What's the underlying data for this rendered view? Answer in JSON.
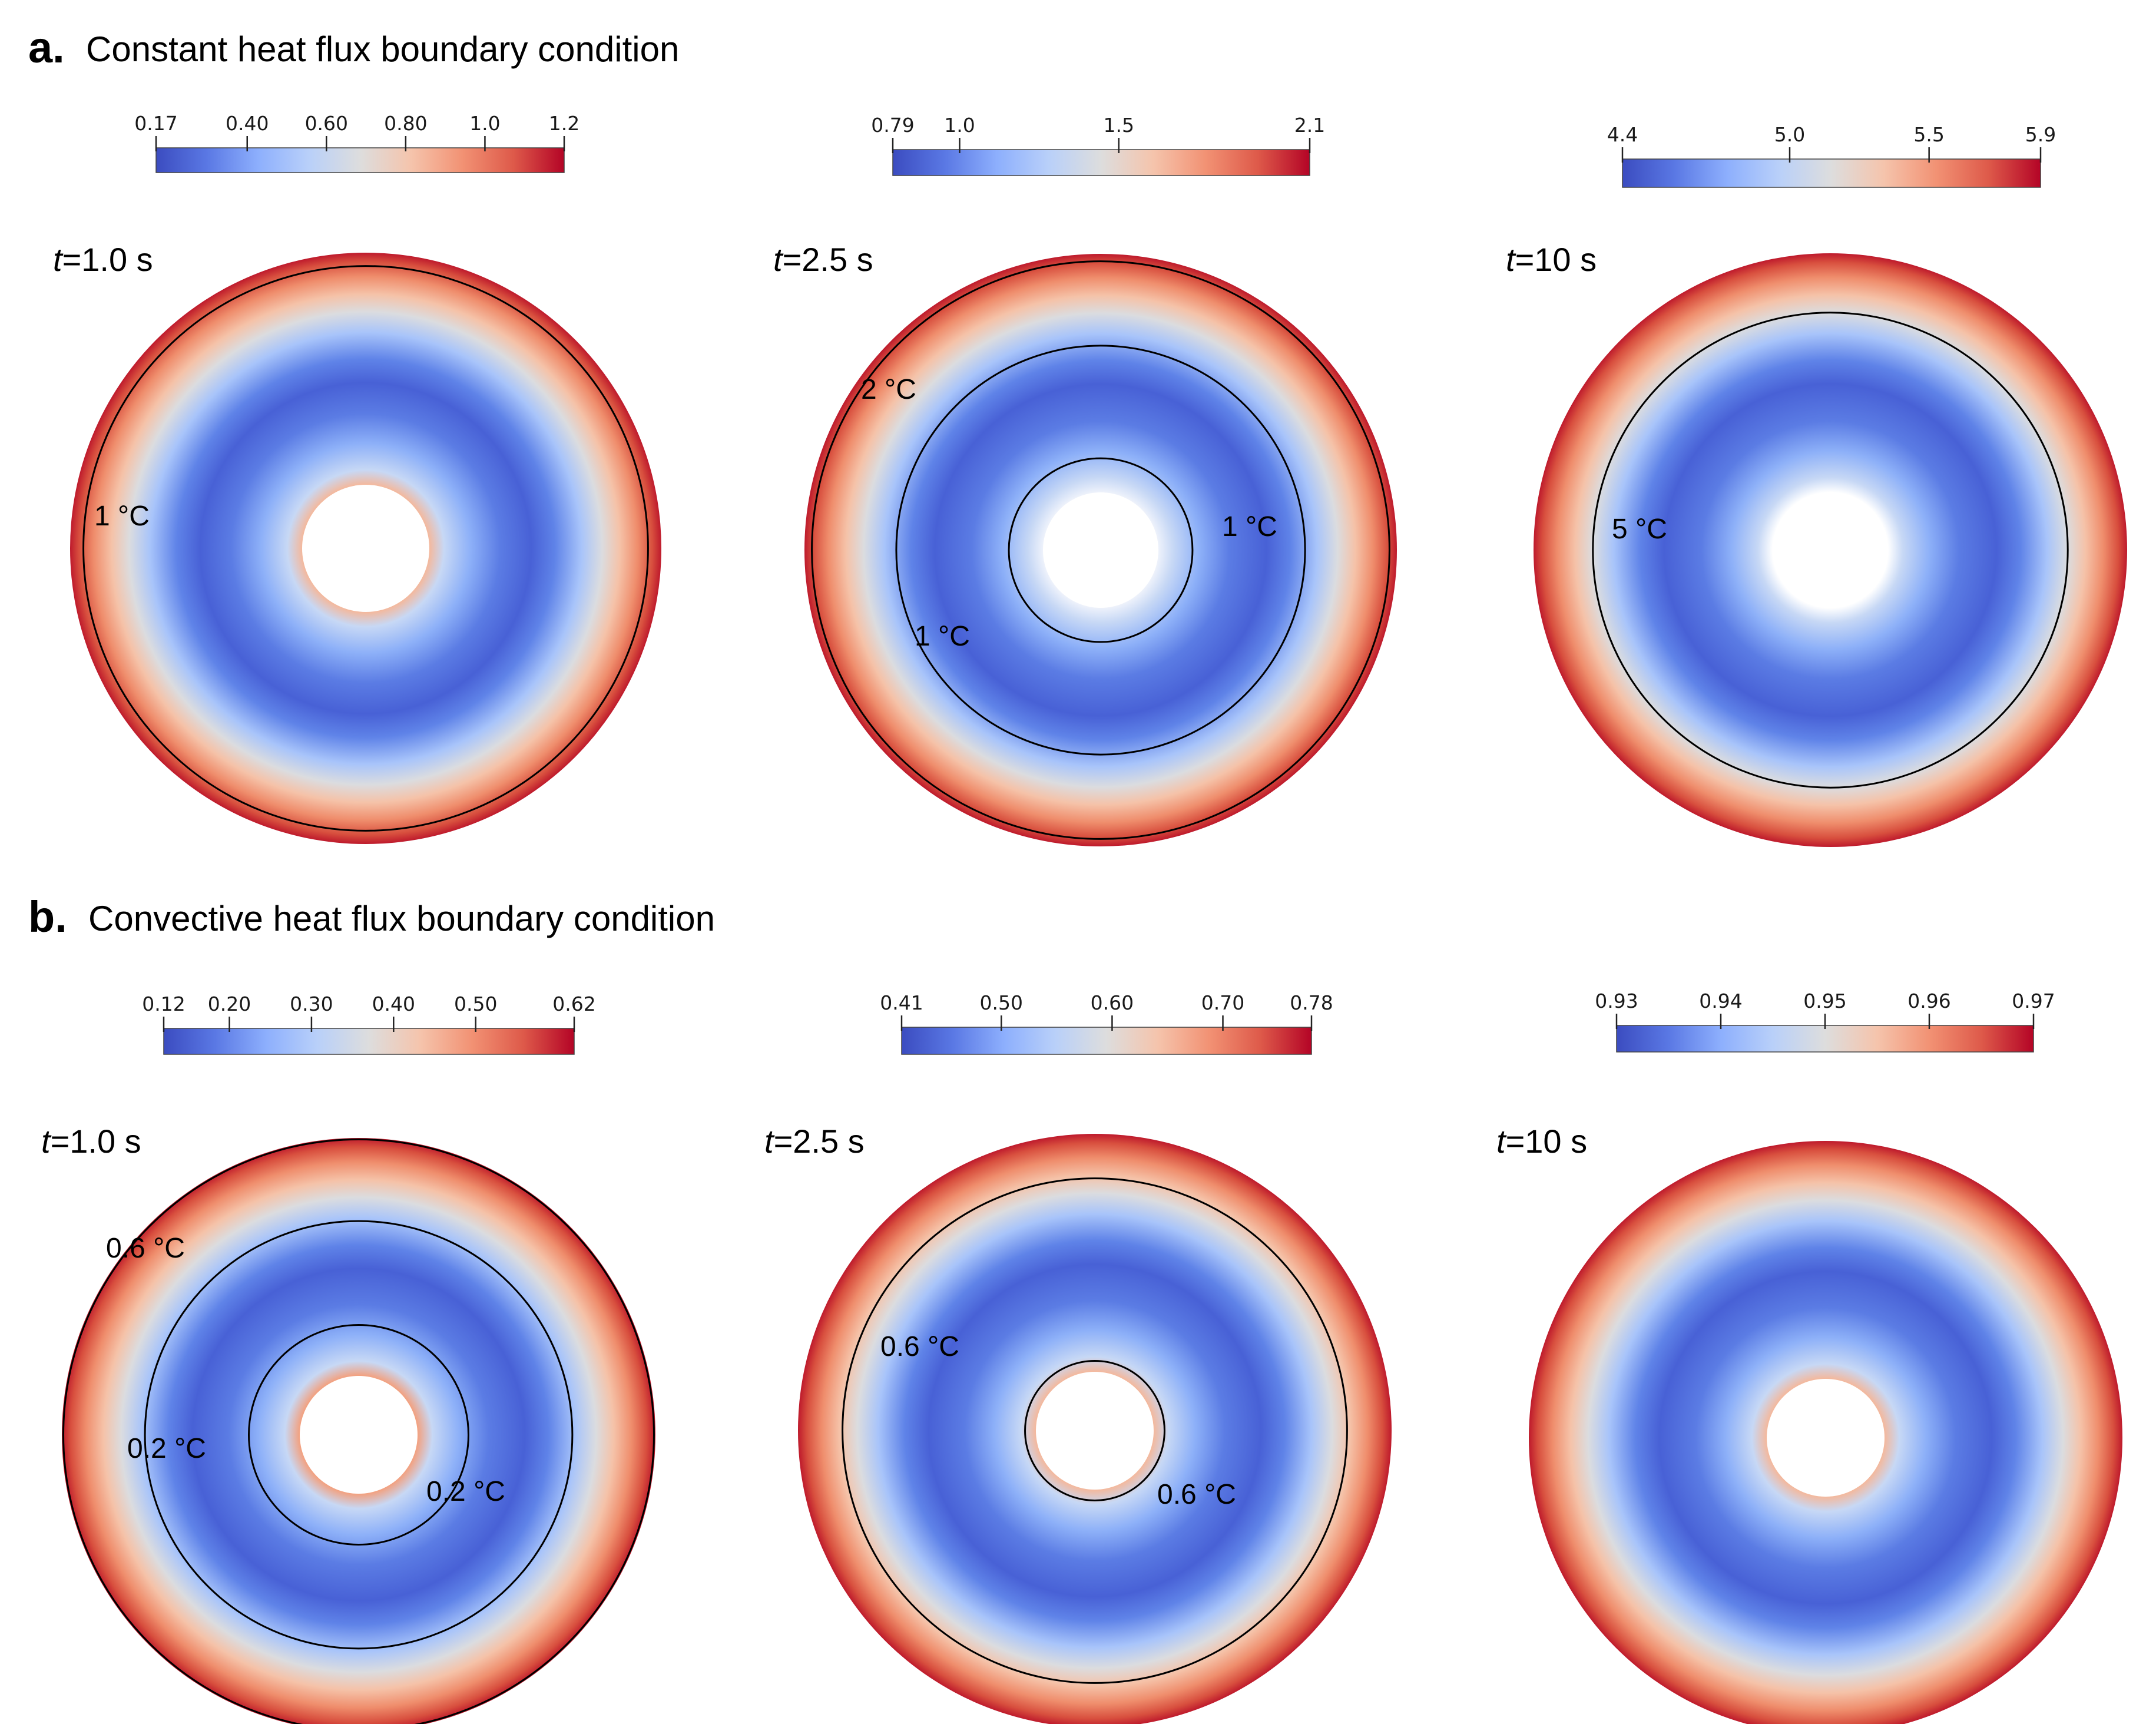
{
  "figure": {
    "panels": [
      {
        "letter": "a.",
        "title": "Constant heat flux boundary condition",
        "plots": [
          {
            "time_var": "t",
            "time_value": "=1.0 s",
            "colorbar": {
              "ticks": [
                "0.17",
                "0.40",
                "0.60",
                "0.80",
                "1.0",
                "1.2"
              ],
              "range": [
                0.17,
                1.2
              ]
            },
            "field": {
              "inner_ring": "#f4b89c"
            },
            "contours": [
              {
                "radius_fraction": 0.955
              }
            ],
            "contour_labels": [
              {
                "text": "1 °C"
              }
            ]
          },
          {
            "time_var": "t",
            "time_value": "=2.5 s",
            "colorbar": {
              "ticks": [
                "0.79",
                "1.0",
                "1.5",
                "2.1"
              ],
              "range": [
                0.79,
                2.1
              ]
            },
            "field": {
              "inner_ring": "#eef2fb"
            },
            "contours": [
              {
                "radius_fraction": 0.975
              },
              {
                "radius_fraction": 0.69
              },
              {
                "radius_fraction": 0.31
              }
            ],
            "contour_labels": [
              {
                "text": "2 °C"
              },
              {
                "text": "1 °C"
              },
              {
                "text": "1 °C"
              }
            ]
          },
          {
            "time_var": "t",
            "time_value": "=10 s",
            "colorbar": {
              "ticks": [
                "4.4",
                "5.0",
                "5.5",
                "5.9"
              ],
              "range": [
                4.4,
                5.9
              ]
            },
            "field": {
              "inner_ring": "#ffffff"
            },
            "contours": [
              {
                "radius_fraction": 0.8
              }
            ],
            "contour_labels": [
              {
                "text": "5 °C"
              }
            ]
          }
        ]
      },
      {
        "letter": "b.",
        "title": "Convective heat flux boundary condition",
        "plots": [
          {
            "time_var": "t",
            "time_value": "=1.0 s",
            "colorbar": {
              "ticks": [
                "0.12",
                "0.20",
                "0.30",
                "0.40",
                "0.50",
                "0.62"
              ],
              "range": [
                0.12,
                0.62
              ]
            },
            "field": {
              "inner_ring": "#f3a07e"
            },
            "contours": [
              {
                "radius_fraction": 0.995
              },
              {
                "radius_fraction": 0.72
              },
              {
                "radius_fraction": 0.37
              }
            ],
            "contour_labels": [
              {
                "text": "0.6 °C"
              },
              {
                "text": "0.2 °C"
              },
              {
                "text": "0.2 °C"
              }
            ]
          },
          {
            "time_var": "t",
            "time_value": "=2.5 s",
            "colorbar": {
              "ticks": [
                "0.41",
                "0.50",
                "0.60",
                "0.70",
                "0.78"
              ],
              "range": [
                0.41,
                0.78
              ]
            },
            "field": {
              "inner_ring": "#f4b89c"
            },
            "contours": [
              {
                "radius_fraction": 0.85
              },
              {
                "radius_fraction": 0.235
              }
            ],
            "contour_labels": [
              {
                "text": "0.6 °C"
              },
              {
                "text": "0.6 °C"
              }
            ]
          },
          {
            "time_var": "t",
            "time_value": "=10 s",
            "colorbar": {
              "ticks": [
                "0.93",
                "0.94",
                "0.95",
                "0.96",
                "0.97"
              ],
              "range": [
                0.93,
                0.97
              ]
            },
            "field": {
              "inner_ring": "#f4b89c"
            },
            "contours": [],
            "contour_labels": []
          }
        ]
      }
    ],
    "colormap": [
      "#3b4cc0",
      "#5a78e4",
      "#8daffd",
      "#b9d0f9",
      "#dddddd",
      "#f5c4ac",
      "#f29274",
      "#de5a4a",
      "#b40426"
    ]
  }
}
